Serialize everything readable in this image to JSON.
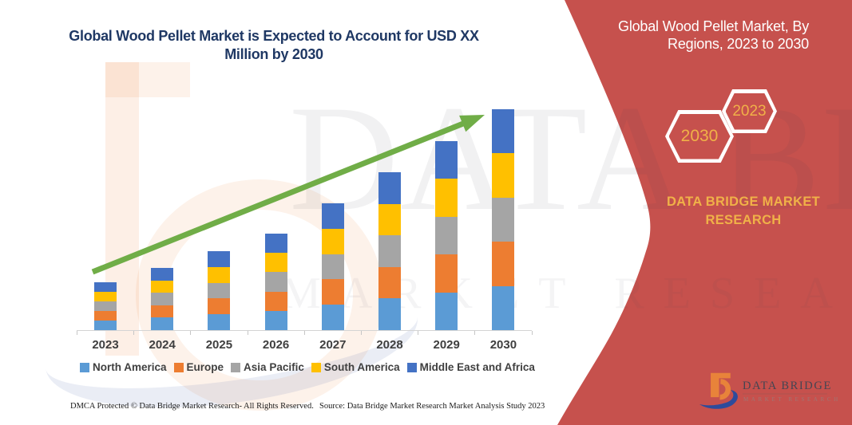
{
  "header": {
    "title_line1": "Global Wood Pellet Market is Expected to Account for USD XX",
    "title_line2": "Million by 2030"
  },
  "side_panel": {
    "title_line1": "Global Wood Pellet Market, By",
    "title_line2": "Regions, 2023 to 2030",
    "hexagon_left": "2030",
    "hexagon_right": "2023",
    "brand_line1": "DATA BRIDGE MARKET",
    "brand_line2": "RESEARCH",
    "panel_color": "#C6514D",
    "gold_color": "#F0B148"
  },
  "chart_data": {
    "type": "bar",
    "stacked": true,
    "title": "Global Wood Pellet Market is Expected to Account for USD XX Million by 2030",
    "categories": [
      "2023",
      "2024",
      "2025",
      "2026",
      "2027",
      "2028",
      "2029",
      "2030"
    ],
    "series": [
      {
        "name": "North America",
        "color": "#5B9BD5",
        "values": [
          12.0,
          15.6,
          19.8,
          24.2,
          31.8,
          39.6,
          47.4,
          55.4
        ]
      },
      {
        "name": "Europe",
        "color": "#ED7D31",
        "values": [
          12.0,
          15.6,
          19.8,
          24.2,
          31.8,
          39.6,
          47.4,
          55.4
        ]
      },
      {
        "name": "Asia Pacific",
        "color": "#A5A5A5",
        "values": [
          12.0,
          15.6,
          19.8,
          24.2,
          31.8,
          39.6,
          47.4,
          55.4
        ]
      },
      {
        "name": "South America",
        "color": "#FFC000",
        "values": [
          12.0,
          15.6,
          19.8,
          24.2,
          31.8,
          39.6,
          47.4,
          55.4
        ]
      },
      {
        "name": "Middle East and Africa",
        "color": "#4472C4",
        "values": [
          12.0,
          15.6,
          19.8,
          24.2,
          31.8,
          39.6,
          47.4,
          55.4
        ]
      }
    ],
    "stack_totals": [
      60,
      78,
      99,
      121,
      159,
      198,
      237,
      277
    ],
    "value_units": "relative index (actual USD values undisclosed as XX)",
    "xlabel": "",
    "ylabel": "",
    "y_axis_visible": false,
    "gridlines": false,
    "legend_position": "bottom",
    "trend_arrow_color": "#70AD47"
  },
  "watermark": {
    "primary": "DATA BRIDGE",
    "secondary": "MARKET RESEARCH"
  },
  "logo": {
    "brand": "DATA BRIDGE",
    "subtitle": "MARKET RESEARCH"
  },
  "footer": {
    "dmca": "DMCA Protected © Data Bridge Market Research-  All Rights Reserved.",
    "source": "Source: Data Bridge Market Research  Market Analysis Study 2023"
  }
}
